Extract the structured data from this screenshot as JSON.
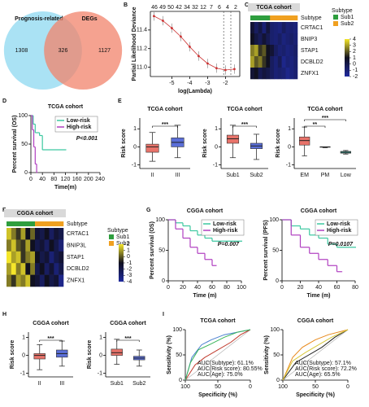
{
  "chart_data": [
    {
      "type": "venn",
      "sets": [
        {
          "name": "Prognosis-related",
          "color": "#8ed8f0"
        },
        {
          "name": "DEGs",
          "color": "#f2836b"
        }
      ],
      "values": [
        1308,
        326,
        1127
      ]
    },
    {
      "type": "line",
      "panel": "B",
      "xlabel": "log(Lambda)",
      "ylabel": "Partial Likelihood Deviance",
      "color": "#cc3333",
      "x": [
        -6,
        -5.5,
        -5,
        -4.5,
        -4,
        -3.5,
        -3,
        -2.5,
        -2,
        -1.5
      ],
      "values": [
        11.55,
        11.5,
        11.42,
        11.33,
        11.22,
        11.12,
        11.04,
        10.99,
        10.97,
        10.98
      ],
      "errors": [
        0.05,
        0.05,
        0.05,
        0.05,
        0.05,
        0.05,
        0.05,
        0.05,
        0.05,
        0.05
      ],
      "xlim": [
        -6.2,
        -1.2
      ],
      "xticks": [
        -5,
        -4,
        -3,
        -2
      ],
      "ylim": [
        10.9,
        11.6
      ],
      "yticks": [
        {
          "value": 11,
          "label": "11.0"
        },
        11.2,
        11.4
      ],
      "top_labels": [
        "46",
        "49",
        "50",
        "42",
        "34",
        "32",
        "12",
        "7",
        "6",
        "4",
        "2"
      ],
      "vlines": [
        -2.1,
        -1.7
      ]
    },
    {
      "type": "heatmap",
      "panel": "C",
      "title": "TCGA cohort",
      "rows": [
        "CRTAC1",
        "BNIP3",
        "STAP1",
        "DCBLD2",
        "ZNFX1"
      ],
      "annotation_title": "Subtype",
      "groups": [
        {
          "name": "Sub1",
          "color": "#2e9e3e"
        },
        {
          "name": "Sub2",
          "color": "#f0a020"
        }
      ],
      "column_groups": [
        0,
        0,
        0,
        0,
        0,
        1,
        1,
        1,
        1,
        1,
        1,
        1
      ],
      "matrix": [
        [
          0.5,
          -0.5,
          0.2,
          -1,
          0.3,
          -0.8,
          -1,
          -1.2,
          -0.5,
          -1,
          -0.9,
          -1.1
        ],
        [
          1,
          0.2,
          -0.3,
          0.5,
          -0.2,
          -0.8,
          -1,
          -0.6,
          -1.2,
          -0.9,
          -0.7,
          -1
        ],
        [
          2.5,
          3,
          1.5,
          2,
          1,
          0.5,
          -0.5,
          -1,
          -0.8,
          -1.2,
          -1,
          -0.7
        ],
        [
          3,
          2,
          2.5,
          1.5,
          1,
          -0.5,
          -1,
          -0.3,
          -1.5,
          -1,
          -1.2,
          -0.8
        ],
        [
          0.5,
          1,
          -0.2,
          0.3,
          0,
          -0.5,
          -1,
          -0.8,
          -1,
          -1.5,
          -1.2,
          -0.9
        ]
      ],
      "clim": [
        -2,
        4
      ],
      "cticks": [
        4,
        3,
        2,
        1,
        0,
        -1,
        -2
      ],
      "colors": [
        "#1f2a9e",
        "#101020",
        "#f5e62a"
      ]
    },
    {
      "type": "km",
      "panel": "D",
      "title": "TCGA cohort",
      "xlabel": "Time(m)",
      "ylabel": "Percent survival (OS)",
      "annotation": "P<0.001",
      "xlim": [
        0,
        240
      ],
      "xticks": [
        0,
        40,
        80,
        120,
        160,
        200,
        240
      ],
      "ylim": [
        0,
        100
      ],
      "yticks": [
        0,
        50,
        100
      ],
      "series": [
        {
          "name": "Low-risk",
          "color": "#3cc8a0",
          "x": [
            0,
            8,
            15,
            30,
            40,
            120
          ],
          "values": [
            100,
            85,
            70,
            65,
            40,
            40
          ]
        },
        {
          "name": "High-risk",
          "color": "#b040c0",
          "x": [
            0,
            5,
            10,
            15,
            20
          ],
          "values": [
            100,
            75,
            45,
            15,
            0
          ]
        }
      ]
    },
    {
      "type": "box",
      "panel": "E",
      "title": "TCGA cohort",
      "ylabel": "Risk score",
      "categories": [
        "II",
        "III"
      ],
      "colors": [
        "#e8736a",
        "#5b6fd8"
      ],
      "boxes": [
        [
          -0.8,
          -0.3,
          0,
          0.15,
          0.8
        ],
        [
          -0.6,
          0,
          0.25,
          0.5,
          1.2
        ]
      ],
      "ylim": [
        -1.2,
        1.6
      ],
      "yticks": [
        -1,
        0,
        1
      ],
      "sig": [
        {
          "pair": [
            0,
            1
          ],
          "label": "***"
        }
      ]
    },
    {
      "type": "box",
      "title": "TCGA cohort",
      "ylabel": "Risk score",
      "categories": [
        "Sub1",
        "Sub2"
      ],
      "colors": [
        "#e8736a",
        "#5b6fd8"
      ],
      "boxes": [
        [
          -0.6,
          0.2,
          0.45,
          0.65,
          1.2
        ],
        [
          -0.7,
          -0.1,
          0.05,
          0.2,
          0.7
        ]
      ],
      "ylim": [
        -1.2,
        1.6
      ],
      "yticks": [
        -1,
        0,
        1
      ],
      "sig": [
        {
          "pair": [
            0,
            1
          ],
          "label": "***"
        }
      ]
    },
    {
      "type": "box",
      "title": "TCGA cohort",
      "ylabel": "Risk score",
      "categories": [
        "EM",
        "PM",
        "Low"
      ],
      "colors": [
        "#e8736a",
        "#999999",
        "#40c0b0"
      ],
      "boxes": [
        [
          -0.5,
          0.1,
          0.35,
          0.55,
          1.1
        ],
        [
          -0.05,
          0,
          0,
          0,
          0
        ],
        [
          -0.4,
          -0.35,
          -0.3,
          -0.25,
          -0.2
        ]
      ],
      "ylim": [
        -1.2,
        1.6
      ],
      "yticks": [
        -1,
        0,
        1
      ],
      "sig": [
        {
          "pair": [
            0,
            1
          ],
          "label": "**"
        },
        {
          "pair": [
            0,
            2
          ],
          "label": "***"
        }
      ]
    },
    {
      "type": "heatmap",
      "panel": "F",
      "title": "CGGA cohort",
      "rows": [
        "CRTAC1",
        "BNIP3L",
        "STAP1",
        "DCBLD2",
        "ZNFX1"
      ],
      "annotation_title": "Subtype",
      "groups": [
        {
          "name": "Sub1",
          "color": "#2e9e3e"
        },
        {
          "name": "Sub2",
          "color": "#f0a020"
        }
      ],
      "column_groups": [
        0,
        0,
        0,
        0,
        0,
        0,
        1,
        1,
        1,
        1,
        1,
        1
      ],
      "matrix": [
        [
          1.5,
          0.5,
          -0.5,
          1,
          -1,
          0.2,
          -1.5,
          -2,
          -1,
          -2.5,
          -1.5,
          -2
        ],
        [
          0.5,
          1.5,
          0,
          -0.5,
          1,
          -1,
          -2,
          -1.5,
          -2.5,
          -1,
          -2,
          -3
        ],
        [
          2,
          1,
          1.5,
          -0.5,
          0.5,
          1,
          -1,
          -2,
          -1.5,
          -3,
          -2,
          -1.5
        ],
        [
          1,
          2,
          0.5,
          1.5,
          -1,
          0.5,
          -2,
          -1,
          -2.5,
          -1.5,
          -3,
          -2
        ],
        [
          0.5,
          -0.5,
          1,
          0.5,
          1.5,
          -1,
          -1.5,
          -2.5,
          -1,
          -2,
          -1.5,
          -3.5
        ]
      ],
      "clim": [
        -4,
        2
      ],
      "cticks": [
        2,
        1,
        0,
        -1,
        -2,
        -3,
        -4
      ],
      "colors": [
        "#1f2a9e",
        "#101020",
        "#f5e62a"
      ]
    },
    {
      "type": "km",
      "panel": "G",
      "title": "CGGA cohort",
      "xlabel": "Time (m)",
      "ylabel": "Percent survival (OS)",
      "annotation": "P=0.007",
      "xlim": [
        0,
        100
      ],
      "xticks": [
        0,
        20,
        40,
        60,
        80,
        100
      ],
      "ylim": [
        0,
        100
      ],
      "yticks": [
        0,
        50,
        100
      ],
      "series": [
        {
          "name": "Low-risk",
          "color": "#3cc8a0",
          "x": [
            0,
            10,
            20,
            30,
            40,
            50,
            60,
            100
          ],
          "values": [
            100,
            95,
            90,
            82,
            75,
            70,
            65,
            65
          ]
        },
        {
          "name": "High-risk",
          "color": "#b040c0",
          "x": [
            0,
            10,
            20,
            30,
            40,
            50,
            60,
            65
          ],
          "values": [
            100,
            85,
            70,
            55,
            45,
            35,
            25,
            25
          ]
        }
      ]
    },
    {
      "type": "km",
      "title": "CGGA cohort",
      "xlabel": "Time (m)",
      "ylabel": "Percent survival (PFS)",
      "annotation": "P=0.0107",
      "xlim": [
        0,
        80
      ],
      "xticks": [
        0,
        20,
        40,
        60,
        80
      ],
      "ylim": [
        0,
        100
      ],
      "yticks": [
        0,
        50,
        100
      ],
      "series": [
        {
          "name": "Low-risk",
          "color": "#3cc8a0",
          "x": [
            0,
            10,
            20,
            30,
            40,
            50,
            60,
            80
          ],
          "values": [
            100,
            90,
            85,
            75,
            70,
            60,
            55,
            55
          ]
        },
        {
          "name": "High-risk",
          "color": "#b040c0",
          "x": [
            0,
            10,
            20,
            30,
            40,
            50,
            60,
            65
          ],
          "values": [
            100,
            75,
            55,
            45,
            35,
            25,
            15,
            15
          ]
        }
      ]
    },
    {
      "type": "box",
      "panel": "H",
      "title": "CGGA cohort",
      "ylabel": "Risk score",
      "categories": [
        "II",
        "III"
      ],
      "colors": [
        "#e8736a",
        "#5b6fd8"
      ],
      "boxes": [
        [
          -0.8,
          -0.2,
          0,
          0.1,
          0.6
        ],
        [
          -0.6,
          -0.1,
          0.1,
          0.3,
          0.8
        ]
      ],
      "ylim": [
        -1.2,
        1.3
      ],
      "yticks": [
        -1,
        0,
        1
      ],
      "sig": [
        {
          "pair": [
            0,
            1
          ],
          "label": "***"
        }
      ]
    },
    {
      "type": "box",
      "title": "CGGA cohort",
      "ylabel": "Risk score",
      "categories": [
        "Sub1",
        "Sub2"
      ],
      "colors": [
        "#e8736a",
        "#5b6fd8"
      ],
      "boxes": [
        [
          -0.5,
          0,
          0.15,
          0.35,
          0.9
        ],
        [
          -0.6,
          -0.25,
          -0.15,
          -0.05,
          0.3
        ]
      ],
      "ylim": [
        -1.2,
        1.3
      ],
      "yticks": [
        -1,
        0,
        1
      ],
      "sig": [
        {
          "pair": [
            0,
            1
          ],
          "label": "***"
        }
      ]
    },
    {
      "type": "roc",
      "panel": "I",
      "title": "TCGA cohort",
      "xlabel": "Specificity (%)",
      "ylabel": "Sensitivity (%)",
      "xlim": [
        100,
        0
      ],
      "xticks": [
        100,
        50,
        0
      ],
      "ylim": [
        0,
        100
      ],
      "yticks": [
        0,
        50,
        100
      ],
      "series": [
        {
          "name": "AUC(Subtype): 61.1%",
          "color": "#c0392b",
          "x": [
            100,
            85,
            70,
            50,
            30,
            15,
            0
          ],
          "values": [
            0,
            30,
            45,
            60,
            75,
            90,
            100
          ]
        },
        {
          "name": "AUC(Risk score): 80.55%",
          "color": "#4a7fd0",
          "x": [
            100,
            90,
            75,
            60,
            40,
            20,
            0
          ],
          "values": [
            0,
            45,
            70,
            80,
            90,
            95,
            100
          ]
        },
        {
          "name": "AUC(Age): 75.0%",
          "color": "#3ab55a",
          "x": [
            100,
            92,
            80,
            60,
            40,
            20,
            0
          ],
          "values": [
            0,
            35,
            60,
            72,
            85,
            95,
            100
          ]
        }
      ]
    },
    {
      "type": "roc",
      "title": "CGGA cohort",
      "xlabel": "Specificity (%)",
      "ylabel": "Sensitivity (%)",
      "xlim": [
        100,
        0
      ],
      "xticks": [
        100,
        50,
        0
      ],
      "ylim": [
        0,
        100
      ],
      "yticks": [
        0,
        50,
        100
      ],
      "series": [
        {
          "name": "AUC(Subtype): 57.1%",
          "color": "#222222",
          "x": [
            100,
            80,
            60,
            40,
            20,
            0
          ],
          "values": [
            0,
            35,
            50,
            65,
            85,
            100
          ]
        },
        {
          "name": "AUC(Risk score): 72.2%",
          "color": "#e8891a",
          "x": [
            100,
            85,
            70,
            50,
            30,
            0
          ],
          "values": [
            0,
            45,
            65,
            80,
            90,
            100
          ]
        },
        {
          "name": "AUC(Age): 65.5%",
          "color": "#d8c83a",
          "x": [
            100,
            85,
            65,
            45,
            25,
            0
          ],
          "values": [
            0,
            38,
            55,
            70,
            85,
            100
          ]
        }
      ]
    }
  ]
}
